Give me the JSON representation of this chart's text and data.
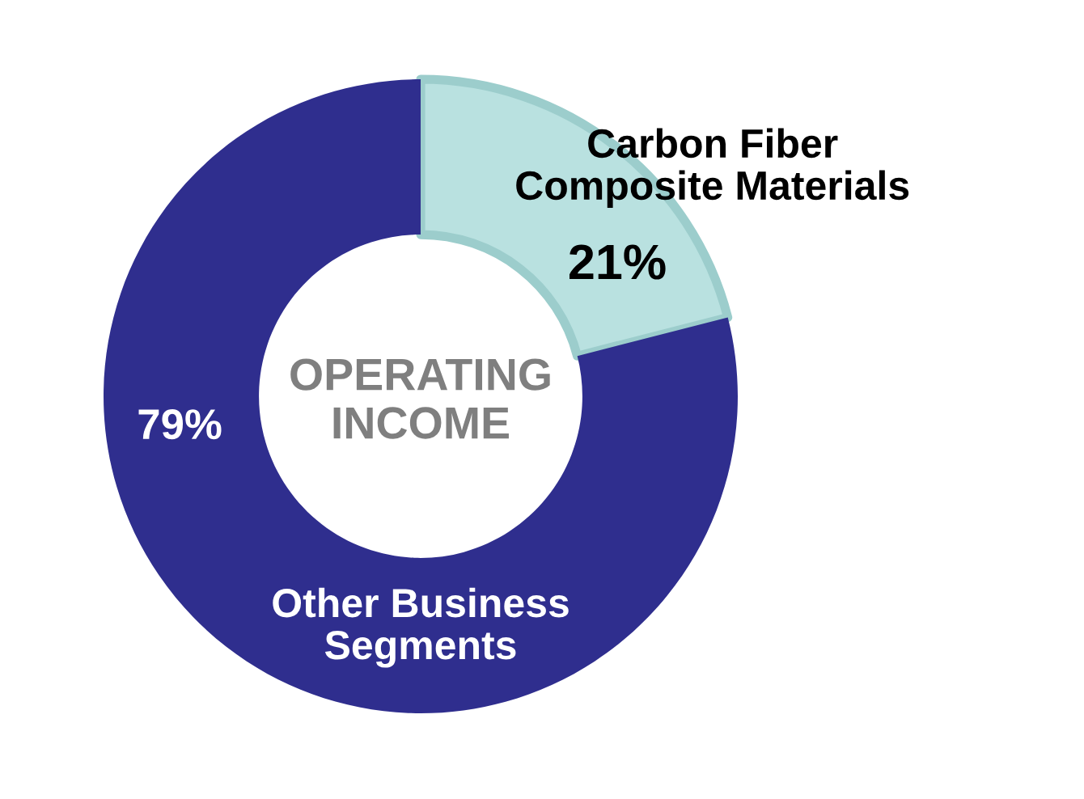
{
  "chart_data": {
    "type": "donut",
    "title": "OPERATING INCOME",
    "categories": [
      "Carbon Fiber\nComposite Materials",
      "Other Business\nSegments"
    ],
    "values": [
      21,
      79
    ],
    "colors": [
      "#b9e1e0",
      "#2f2e8e"
    ],
    "value_labels": [
      "21%",
      "79%"
    ],
    "legend": false
  }
}
